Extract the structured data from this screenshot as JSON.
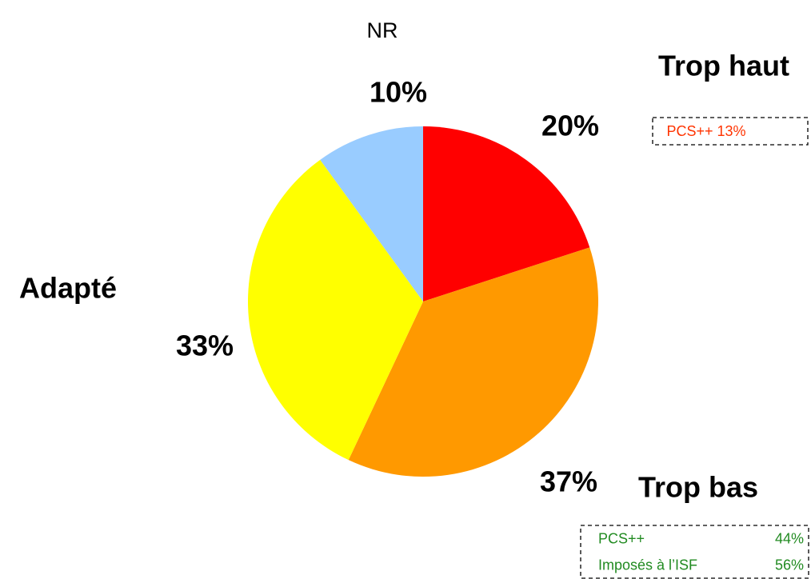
{
  "chart_data": {
    "type": "pie",
    "categories": [
      "Trop haut",
      "Trop bas",
      "Adapté",
      "NR"
    ],
    "values": [
      20,
      37,
      33,
      10
    ],
    "value_labels": [
      "20%",
      "37%",
      "33%",
      "10%"
    ],
    "colors": [
      "#ff0000",
      "#ff9900",
      "#ffff00",
      "#99ccff"
    ],
    "annotations": [
      {
        "lines": [
          [
            "PCS++ 13%"
          ]
        ],
        "color": "#ff3300"
      },
      {
        "lines": [
          [
            "PCS++",
            "44%"
          ],
          [
            "Imposés à l’ISF",
            "56%"
          ]
        ],
        "color": "#228b22"
      }
    ]
  }
}
